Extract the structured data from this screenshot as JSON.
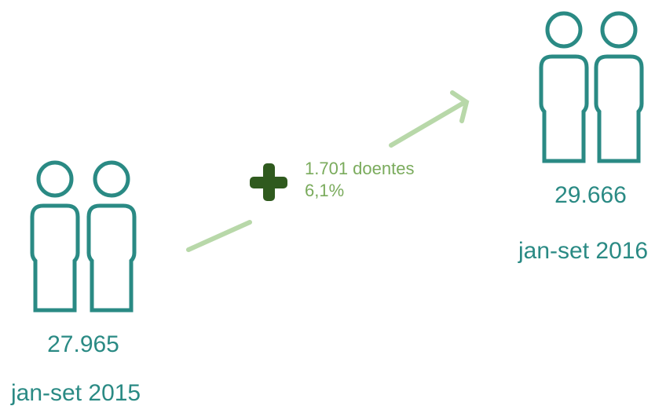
{
  "before": {
    "value": "27.965",
    "period": "jan-set 2015"
  },
  "after": {
    "value": "29.666",
    "period": "jan-set 2016"
  },
  "change": {
    "absolute": "1.701 doentes",
    "percent": "6,1%"
  }
}
